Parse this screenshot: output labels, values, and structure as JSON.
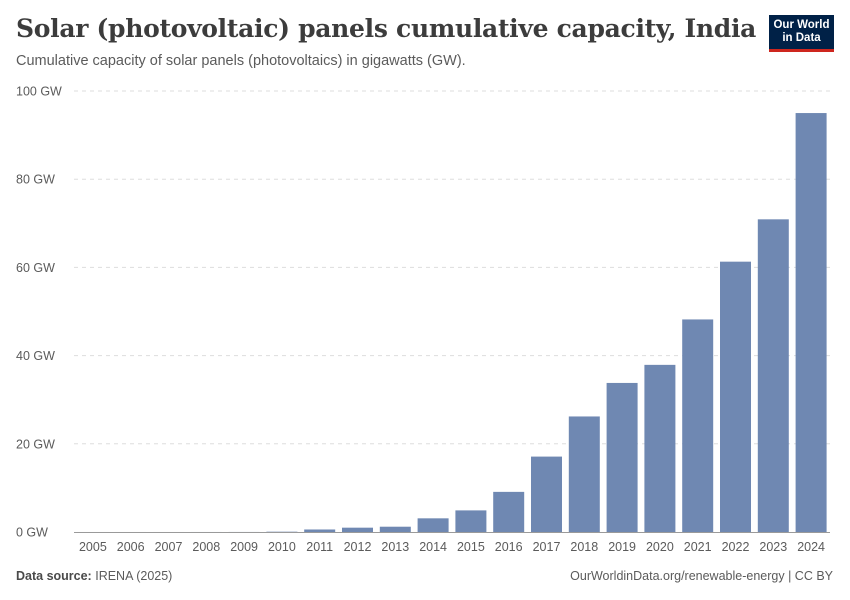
{
  "header": {
    "title": "Solar (photovoltaic) panels cumulative capacity, India",
    "subtitle": "Cumulative capacity of solar panels (photovoltaics) in gigawatts (GW).",
    "logo_line1": "Our World",
    "logo_line2": "in Data"
  },
  "footer": {
    "source_label": "Data source:",
    "source_value": "IRENA (2025)",
    "credit": "OurWorldinData.org/renewable-energy | CC BY"
  },
  "colors": {
    "bar": "#6f88b2",
    "grid": "#dddddd",
    "axis": "#9a9a9a",
    "logo_bg": "#002147",
    "logo_accent": "#ce261e"
  },
  "chart_data": {
    "type": "bar",
    "title": "Solar (photovoltaic) panels cumulative capacity, India",
    "subtitle": "Cumulative capacity of solar panels (photovoltaics) in gigawatts (GW).",
    "categories": [
      "2005",
      "2006",
      "2007",
      "2008",
      "2009",
      "2010",
      "2011",
      "2012",
      "2013",
      "2014",
      "2015",
      "2016",
      "2017",
      "2018",
      "2019",
      "2020",
      "2021",
      "2022",
      "2023",
      "2024"
    ],
    "values": [
      0.003,
      0.003,
      0.003,
      0.004,
      0.01,
      0.07,
      0.57,
      0.98,
      1.2,
      3.1,
      4.9,
      9.1,
      17.1,
      26.2,
      33.8,
      37.9,
      48.2,
      61.3,
      70.9,
      95.0
    ],
    "series": [
      {
        "name": "India",
        "values": [
          0.003,
          0.003,
          0.003,
          0.004,
          0.01,
          0.07,
          0.57,
          0.98,
          1.2,
          3.1,
          4.9,
          9.1,
          17.1,
          26.2,
          33.8,
          37.9,
          48.2,
          61.3,
          70.9,
          95.0
        ]
      }
    ],
    "yticks": [
      0,
      20,
      40,
      60,
      80,
      100
    ],
    "ytick_labels": [
      "0 GW",
      "20 GW",
      "40 GW",
      "60 GW",
      "80 GW",
      "100 GW"
    ],
    "ylim": [
      0,
      100
    ],
    "xlabel": "",
    "ylabel": "",
    "grid": true,
    "legend": "none"
  }
}
